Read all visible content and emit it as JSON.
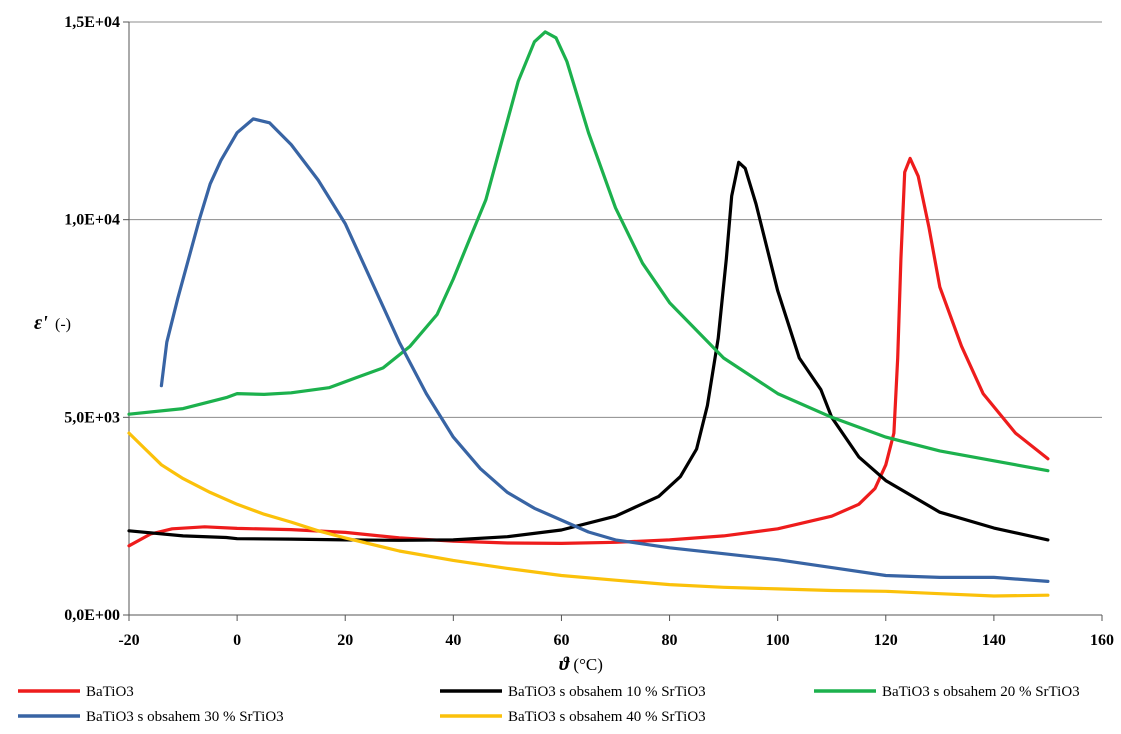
{
  "chart_data": {
    "type": "line",
    "title": "",
    "xlabel_symbol": "ϑ",
    "xlabel_unit": "(°C)",
    "ylabel_symbol": "ε'",
    "ylabel_unit": "(-)",
    "xlim": [
      -20,
      160
    ],
    "ylim": [
      0,
      15000
    ],
    "x_ticks": [
      -20,
      0,
      20,
      40,
      60,
      80,
      100,
      120,
      140,
      160
    ],
    "y_ticks": [
      {
        "value": 0,
        "label": "0,0E+00"
      },
      {
        "value": 5000,
        "label": "5,0E+03"
      },
      {
        "value": 10000,
        "label": "1,0E+04"
      },
      {
        "value": 15000,
        "label": "1,5E+04"
      }
    ],
    "grid": "horizontal",
    "legend_position": "bottom",
    "series": [
      {
        "name": "BaTiO3",
        "color": "#ee1c1c",
        "points": [
          [
            -20,
            1750
          ],
          [
            -16,
            2050
          ],
          [
            -12,
            2180
          ],
          [
            -6,
            2230
          ],
          [
            0,
            2190
          ],
          [
            10,
            2160
          ],
          [
            20,
            2090
          ],
          [
            30,
            1950
          ],
          [
            40,
            1870
          ],
          [
            50,
            1820
          ],
          [
            60,
            1810
          ],
          [
            70,
            1840
          ],
          [
            80,
            1900
          ],
          [
            90,
            2000
          ],
          [
            100,
            2180
          ],
          [
            110,
            2500
          ],
          [
            115,
            2800
          ],
          [
            118,
            3200
          ],
          [
            120,
            3800
          ],
          [
            121.5,
            4600
          ],
          [
            122.2,
            6500
          ],
          [
            122.8,
            9000
          ],
          [
            123.5,
            11200
          ],
          [
            124.5,
            11550
          ],
          [
            126,
            11100
          ],
          [
            128,
            9800
          ],
          [
            130,
            8300
          ],
          [
            134,
            6800
          ],
          [
            138,
            5600
          ],
          [
            144,
            4600
          ],
          [
            150,
            3950
          ]
        ]
      },
      {
        "name": "BaTiO3 s obsahem 10 % SrTiO3",
        "color": "#000000",
        "points": [
          [
            -20,
            2130
          ],
          [
            -10,
            2000
          ],
          [
            -2,
            1960
          ],
          [
            0,
            1930
          ],
          [
            10,
            1920
          ],
          [
            20,
            1900
          ],
          [
            30,
            1890
          ],
          [
            40,
            1900
          ],
          [
            50,
            1980
          ],
          [
            60,
            2150
          ],
          [
            70,
            2500
          ],
          [
            78,
            3000
          ],
          [
            82,
            3500
          ],
          [
            85,
            4200
          ],
          [
            87,
            5300
          ],
          [
            89,
            7000
          ],
          [
            90.5,
            9000
          ],
          [
            91.5,
            10600
          ],
          [
            92.8,
            11450
          ],
          [
            94,
            11300
          ],
          [
            96,
            10400
          ],
          [
            100,
            8200
          ],
          [
            104,
            6500
          ],
          [
            108,
            5700
          ],
          [
            110,
            5000
          ],
          [
            115,
            4000
          ],
          [
            120,
            3400
          ],
          [
            130,
            2600
          ],
          [
            140,
            2200
          ],
          [
            150,
            1900
          ]
        ]
      },
      {
        "name": "BaTiO3 s obsahem 20 % SrTiO3",
        "color": "#1cb14d",
        "points": [
          [
            -20,
            5080
          ],
          [
            -10,
            5220
          ],
          [
            -2,
            5500
          ],
          [
            0,
            5600
          ],
          [
            5,
            5580
          ],
          [
            10,
            5620
          ],
          [
            17,
            5750
          ],
          [
            22,
            6000
          ],
          [
            27,
            6250
          ],
          [
            32,
            6800
          ],
          [
            37,
            7600
          ],
          [
            40,
            8500
          ],
          [
            43,
            9500
          ],
          [
            46,
            10500
          ],
          [
            49,
            12000
          ],
          [
            52,
            13500
          ],
          [
            55,
            14500
          ],
          [
            57,
            14750
          ],
          [
            59,
            14600
          ],
          [
            61,
            14000
          ],
          [
            65,
            12200
          ],
          [
            70,
            10300
          ],
          [
            75,
            8900
          ],
          [
            80,
            7900
          ],
          [
            90,
            6500
          ],
          [
            100,
            5600
          ],
          [
            110,
            5000
          ],
          [
            120,
            4500
          ],
          [
            130,
            4150
          ],
          [
            140,
            3900
          ],
          [
            150,
            3650
          ]
        ]
      },
      {
        "name": "BaTiO3 s obsahem 30 % SrTiO3",
        "color": "#3864a4",
        "points": [
          [
            -14,
            5800
          ],
          [
            -13,
            6900
          ],
          [
            -11,
            8000
          ],
          [
            -9,
            9000
          ],
          [
            -7,
            10000
          ],
          [
            -5,
            10900
          ],
          [
            -3,
            11500
          ],
          [
            0,
            12200
          ],
          [
            3,
            12550
          ],
          [
            6,
            12450
          ],
          [
            10,
            11900
          ],
          [
            15,
            11000
          ],
          [
            20,
            9900
          ],
          [
            25,
            8400
          ],
          [
            30,
            6900
          ],
          [
            35,
            5600
          ],
          [
            40,
            4500
          ],
          [
            45,
            3700
          ],
          [
            50,
            3100
          ],
          [
            55,
            2700
          ],
          [
            60,
            2400
          ],
          [
            65,
            2100
          ],
          [
            70,
            1900
          ],
          [
            80,
            1700
          ],
          [
            90,
            1550
          ],
          [
            100,
            1400
          ],
          [
            110,
            1200
          ],
          [
            120,
            1000
          ],
          [
            130,
            950
          ],
          [
            140,
            950
          ],
          [
            150,
            850
          ]
        ]
      },
      {
        "name": "BaTiO3 s obsahem 40 % SrTiO3",
        "color": "#fbc10a",
        "points": [
          [
            -20,
            4600
          ],
          [
            -17,
            4200
          ],
          [
            -14,
            3800
          ],
          [
            -10,
            3450
          ],
          [
            -5,
            3100
          ],
          [
            0,
            2800
          ],
          [
            5,
            2550
          ],
          [
            10,
            2350
          ],
          [
            15,
            2130
          ],
          [
            20,
            1950
          ],
          [
            30,
            1620
          ],
          [
            40,
            1380
          ],
          [
            50,
            1180
          ],
          [
            60,
            1000
          ],
          [
            70,
            880
          ],
          [
            80,
            770
          ],
          [
            90,
            700
          ],
          [
            100,
            660
          ],
          [
            110,
            620
          ],
          [
            120,
            600
          ],
          [
            130,
            540
          ],
          [
            140,
            480
          ],
          [
            150,
            500
          ]
        ]
      }
    ]
  }
}
